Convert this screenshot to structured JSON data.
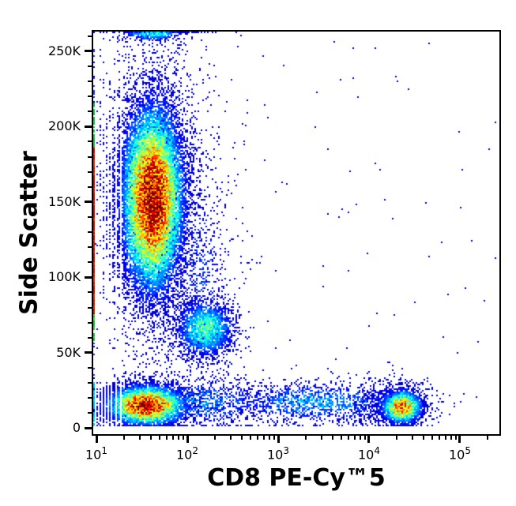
{
  "figure": {
    "background": "#ffffff"
  },
  "chart_data": {
    "type": "scatter",
    "variant": "flow-cytometry-pseudocolor-density",
    "title": "",
    "xlabel": "CD8 PE-Cy™5",
    "ylabel": "Side Scatter",
    "x_scale": "log10",
    "x_log_range": [
      0.9652,
      5.4348
    ],
    "y_range": [
      -4000,
      263000
    ],
    "grid": false,
    "legend": "none",
    "x_major_ticks": [
      {
        "value": 10,
        "base": "10",
        "exp": "1"
      },
      {
        "value": 100,
        "base": "10",
        "exp": "2"
      },
      {
        "value": 1000,
        "base": "10",
        "exp": "3"
      },
      {
        "value": 10000,
        "base": "10",
        "exp": "4"
      },
      {
        "value": 100000,
        "base": "10",
        "exp": "5"
      }
    ],
    "x_minor_mantissas": [
      2,
      3,
      4,
      5,
      6,
      7,
      8,
      9
    ],
    "y_major_ticks": [
      {
        "value": 0,
        "label": "0"
      },
      {
        "value": 50000,
        "label": "50K"
      },
      {
        "value": 100000,
        "label": "100K"
      },
      {
        "value": 150000,
        "label": "150K"
      },
      {
        "value": 200000,
        "label": "200K"
      },
      {
        "value": 250000,
        "label": "250K"
      }
    ],
    "y_minor_step": 10000,
    "colormap": "jet",
    "dot_seed": 1234567,
    "populations": [
      {
        "name": "granulocyte-halo",
        "count": 3000,
        "x_log_mean": 1.63,
        "x_log_sd": 0.3,
        "ssc_mean": 155000,
        "ssc_sd": 55000,
        "peak": 0.22,
        "quantize": true
      },
      {
        "name": "mono-granulo-bridge",
        "count": 600,
        "x_log_mean": 2.12,
        "x_log_sd": 0.22,
        "ssc_mean": 100000,
        "ssc_sd": 38000,
        "peak": 0.18
      },
      {
        "name": "background-noise",
        "count": 130,
        "uniform": true,
        "x_log_uniform_range": [
          0.98,
          5.4
        ],
        "ssc_uniform_range": [
          2000,
          260000
        ],
        "peak": 0.12
      },
      {
        "name": "lymphocyte-spread-band",
        "count": 1400,
        "x_log_mean": 2.0,
        "x_log_sd": 0.55,
        "ssc_mean": 17000,
        "ssc_sd": 8500,
        "peak": 0.26,
        "quantize": true
      },
      {
        "name": "cd8-dim-band",
        "count": 1100,
        "x_log_mean": 3.4,
        "x_log_sd": 0.55,
        "ssc_mean": 17000,
        "ssc_sd": 7000,
        "peak": 0.28
      },
      {
        "name": "cd8-positive-halo",
        "count": 600,
        "x_log_mean": 4.28,
        "x_log_sd": 0.22,
        "ssc_mean": 16000,
        "ssc_sd": 8000,
        "peak": 0.22
      },
      {
        "name": "monocytes",
        "count": 2000,
        "x_log_mean": 2.2,
        "x_log_sd": 0.16,
        "ssc_mean": 66000,
        "ssc_sd": 9500,
        "peak": 0.45
      },
      {
        "name": "lymphocytes-cd8-negative",
        "count": 5500,
        "x_log_mean": 1.55,
        "x_log_sd": 0.21,
        "ssc_mean": 15000,
        "ssc_sd": 6500,
        "peak": 0.95,
        "quantize": true
      },
      {
        "name": "cd8-positive-lymphocytes",
        "count": 2400,
        "x_log_mean": 4.36,
        "x_log_sd": 0.11,
        "ssc_mean": 14000,
        "ssc_sd": 5500,
        "peak": 0.78
      },
      {
        "name": "granulocytes",
        "count": 15000,
        "x_log_mean": 1.62,
        "x_log_sd": 0.165,
        "ssc_mean": 152000,
        "ssc_sd": 30000,
        "peak": 1.0,
        "quantize": true
      },
      {
        "name": "ssc-max-pileup",
        "count": 450,
        "x_log_mean": 1.62,
        "x_log_sd": 0.16,
        "ssc_mean": 262000,
        "ssc_sd": 2500,
        "peak": 0.4,
        "quantize": true
      }
    ],
    "axis_pileup": {
      "name": "x-min-axis-pileup-line",
      "segments": [
        {
          "ssc": [
            1500,
            33000
          ],
          "color": "#00b8e8",
          "color2": "#2ad4f0",
          "density": 0.85
        },
        {
          "ssc": [
            33000,
            58000
          ],
          "color": "#2233dd",
          "color2": "#1b2bb8",
          "density": 0.22
        },
        {
          "ssc": [
            58000,
            76000
          ],
          "color": "#22b24c",
          "color2": "#66cc44",
          "density": 0.75
        },
        {
          "ssc": [
            76000,
            186000
          ],
          "color": "#a01208",
          "color2": "#c23410",
          "density": 1.0
        },
        {
          "ssc": [
            186000,
            216000
          ],
          "color": "#28a848",
          "color2": "#1bc060",
          "density": 0.8
        },
        {
          "ssc": [
            216000,
            258000
          ],
          "color": "#2233cc",
          "color2": "#1b2bb8",
          "density": 0.28
        }
      ]
    }
  }
}
